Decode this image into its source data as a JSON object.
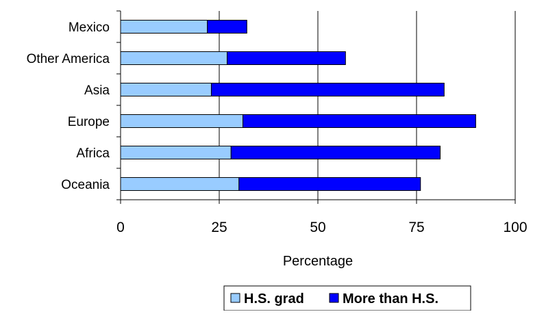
{
  "chart_data": {
    "type": "bar",
    "orientation": "horizontal",
    "stacked": true,
    "title": "",
    "xlabel": "Percentage",
    "ylabel": "",
    "xlim": [
      0,
      100
    ],
    "xticks": [
      0,
      25,
      50,
      75,
      100
    ],
    "grid": true,
    "categories": [
      "Mexico",
      "Other America",
      "Asia",
      "Europe",
      "Africa",
      "Oceania"
    ],
    "series": [
      {
        "name": "H.S. grad",
        "color": "#99ccff",
        "values": [
          22,
          27,
          23,
          31,
          28,
          30
        ]
      },
      {
        "name": "More than H.S.",
        "color": "#0000ff",
        "values": [
          10,
          30,
          59,
          59,
          53,
          46
        ]
      }
    ],
    "legend_position": "bottom"
  }
}
